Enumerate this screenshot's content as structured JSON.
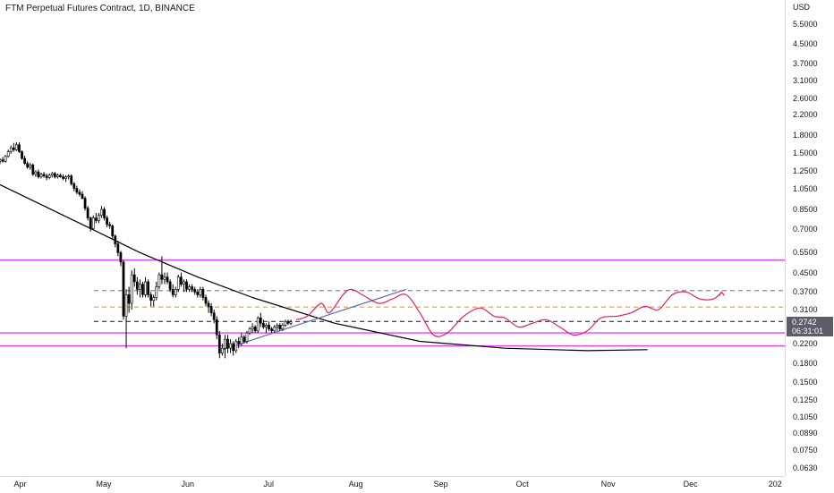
{
  "header": {
    "title": "FTM Perpetual Futures Contract, 1D, BINANCE"
  },
  "price_axis": {
    "unit": "USD",
    "ticks": [
      "5.5000",
      "4.5000",
      "3.7000",
      "3.1000",
      "2.6000",
      "2.2000",
      "1.8000",
      "1.5000",
      "1.2500",
      "1.0500",
      "0.8500",
      "0.7000",
      "0.5500",
      "0.4500",
      "0.3700",
      "0.3100",
      "0.2600",
      "0.2200",
      "0.1800",
      "0.1500",
      "0.1250",
      "0.1050",
      "0.0890",
      "0.0750",
      "0.0630"
    ],
    "last_price": "0.2742",
    "countdown": "06:31:01"
  },
  "time_axis": {
    "labels": [
      "Apr",
      "May",
      "Jun",
      "Jul",
      "Aug",
      "Sep",
      "Oct",
      "Nov",
      "Dec",
      "202"
    ]
  },
  "colors": {
    "up_candle": "#ffffff",
    "down_candle": "#000000",
    "candle_border": "#000000",
    "magenta_level": "#e040fb",
    "orange_level": "#ff9800",
    "gray_level": "#787b86",
    "navy_level": "#2a2e5e",
    "trend_black": "#000000",
    "trend_blue": "#5c6bc0",
    "projection": "#e91e63",
    "badge": "#5b5e68"
  },
  "chart_data": {
    "type": "candlestick",
    "title": "FTM Perpetual Futures Contract, 1D, BINANCE",
    "y_scale": "log",
    "y_unit": "USD",
    "ylim": [
      0.058,
      7.0
    ],
    "x_range": [
      "2022-03-25",
      "2023-01-05"
    ],
    "horizontal_levels": [
      {
        "price": 0.51,
        "style": "solid",
        "color": "magenta"
      },
      {
        "price": 0.375,
        "style": "dashed",
        "color": "gray"
      },
      {
        "price": 0.318,
        "style": "dashed",
        "color": "orange"
      },
      {
        "price": 0.275,
        "style": "dashed",
        "color": "navy"
      },
      {
        "price": 0.245,
        "style": "solid",
        "color": "magenta"
      },
      {
        "price": 0.215,
        "style": "solid",
        "color": "magenta"
      }
    ],
    "trendlines": [
      {
        "color": "black",
        "points": [
          [
            "2022-03-25",
            1.09
          ],
          [
            "2022-04-25",
            0.72
          ],
          [
            "2022-05-15",
            0.55
          ],
          [
            "2022-06-05",
            0.43
          ],
          [
            "2022-06-25",
            0.35
          ],
          [
            "2022-07-25",
            0.27
          ],
          [
            "2022-08-25",
            0.225
          ],
          [
            "2022-09-25",
            0.21
          ],
          [
            "2022-10-25",
            0.205
          ],
          [
            "2022-11-16",
            0.207
          ]
        ]
      },
      {
        "color": "blue",
        "points": [
          [
            "2022-06-13",
            0.205
          ],
          [
            "2022-08-20",
            0.38
          ]
        ]
      }
    ],
    "projection_path": [
      [
        "2022-07-11",
        0.28
      ],
      [
        "2022-07-15",
        0.29
      ],
      [
        "2022-07-20",
        0.33
      ],
      [
        "2022-07-23",
        0.3
      ],
      [
        "2022-07-28",
        0.36
      ],
      [
        "2022-07-31",
        0.38
      ],
      [
        "2022-08-04",
        0.36
      ],
      [
        "2022-08-10",
        0.33
      ],
      [
        "2022-08-15",
        0.345
      ],
      [
        "2022-08-20",
        0.36
      ],
      [
        "2022-08-25",
        0.3
      ],
      [
        "2022-08-30",
        0.24
      ],
      [
        "2022-09-04",
        0.245
      ],
      [
        "2022-09-10",
        0.29
      ],
      [
        "2022-09-16",
        0.315
      ],
      [
        "2022-09-21",
        0.29
      ],
      [
        "2022-09-25",
        0.285
      ],
      [
        "2022-09-30",
        0.26
      ],
      [
        "2022-10-05",
        0.27
      ],
      [
        "2022-10-10",
        0.28
      ],
      [
        "2022-10-15",
        0.26
      ],
      [
        "2022-10-20",
        0.24
      ],
      [
        "2022-10-25",
        0.25
      ],
      [
        "2022-10-30",
        0.285
      ],
      [
        "2022-11-05",
        0.29
      ],
      [
        "2022-11-10",
        0.3
      ],
      [
        "2022-11-15",
        0.32
      ],
      [
        "2022-11-20",
        0.31
      ],
      [
        "2022-11-25",
        0.36
      ],
      [
        "2022-11-30",
        0.37
      ],
      [
        "2022-12-05",
        0.345
      ],
      [
        "2022-12-10",
        0.345
      ],
      [
        "2022-12-13",
        0.37
      ]
    ],
    "candles": [
      [
        "2022-03-25",
        1.38,
        1.42,
        1.34,
        1.4
      ],
      [
        "2022-03-26",
        1.4,
        1.44,
        1.36,
        1.38
      ],
      [
        "2022-03-27",
        1.38,
        1.47,
        1.36,
        1.45
      ],
      [
        "2022-03-28",
        1.45,
        1.55,
        1.43,
        1.52
      ],
      [
        "2022-03-29",
        1.52,
        1.62,
        1.49,
        1.58
      ],
      [
        "2022-03-30",
        1.58,
        1.66,
        1.52,
        1.55
      ],
      [
        "2022-03-31",
        1.55,
        1.67,
        1.53,
        1.63
      ],
      [
        "2022-04-01",
        1.63,
        1.67,
        1.5,
        1.52
      ],
      [
        "2022-04-02",
        1.52,
        1.54,
        1.4,
        1.42
      ],
      [
        "2022-04-03",
        1.42,
        1.46,
        1.33,
        1.35
      ],
      [
        "2022-04-04",
        1.35,
        1.38,
        1.28,
        1.3
      ],
      [
        "2022-04-05",
        1.3,
        1.36,
        1.27,
        1.33
      ],
      [
        "2022-04-06",
        1.33,
        1.35,
        1.19,
        1.21
      ],
      [
        "2022-04-07",
        1.21,
        1.26,
        1.18,
        1.24
      ],
      [
        "2022-04-08",
        1.24,
        1.27,
        1.16,
        1.18
      ],
      [
        "2022-04-09",
        1.18,
        1.23,
        1.16,
        1.21
      ],
      [
        "2022-04-10",
        1.21,
        1.24,
        1.17,
        1.19
      ],
      [
        "2022-04-11",
        1.19,
        1.22,
        1.14,
        1.17
      ],
      [
        "2022-04-12",
        1.17,
        1.22,
        1.15,
        1.2
      ],
      [
        "2022-04-13",
        1.2,
        1.24,
        1.17,
        1.22
      ],
      [
        "2022-04-14",
        1.22,
        1.24,
        1.16,
        1.18
      ],
      [
        "2022-04-15",
        1.18,
        1.22,
        1.16,
        1.2
      ],
      [
        "2022-04-16",
        1.2,
        1.22,
        1.17,
        1.18
      ],
      [
        "2022-04-17",
        1.18,
        1.21,
        1.14,
        1.16
      ],
      [
        "2022-04-18",
        1.16,
        1.2,
        1.12,
        1.18
      ],
      [
        "2022-04-19",
        1.18,
        1.21,
        1.15,
        1.19
      ],
      [
        "2022-04-20",
        1.19,
        1.21,
        1.08,
        1.1
      ],
      [
        "2022-04-21",
        1.1,
        1.12,
        1.02,
        1.05
      ],
      [
        "2022-04-22",
        1.05,
        1.08,
        0.99,
        1.01
      ],
      [
        "2022-04-23",
        1.01,
        1.04,
        0.97,
        0.99
      ],
      [
        "2022-04-24",
        0.99,
        1.02,
        0.94,
        0.95
      ],
      [
        "2022-04-25",
        0.95,
        0.97,
        0.84,
        0.86
      ],
      [
        "2022-04-26",
        0.86,
        0.88,
        0.76,
        0.78
      ],
      [
        "2022-04-27",
        0.78,
        0.79,
        0.68,
        0.7
      ],
      [
        "2022-04-28",
        0.7,
        0.8,
        0.69,
        0.78
      ],
      [
        "2022-04-29",
        0.78,
        0.82,
        0.74,
        0.76
      ],
      [
        "2022-04-30",
        0.76,
        0.82,
        0.74,
        0.8
      ],
      [
        "2022-05-01",
        0.8,
        0.88,
        0.78,
        0.85
      ],
      [
        "2022-05-02",
        0.85,
        0.87,
        0.76,
        0.78
      ],
      [
        "2022-05-03",
        0.78,
        0.8,
        0.71,
        0.73
      ],
      [
        "2022-05-04",
        0.73,
        0.75,
        0.7,
        0.72
      ],
      [
        "2022-05-05",
        0.72,
        0.73,
        0.63,
        0.65
      ],
      [
        "2022-05-06",
        0.65,
        0.66,
        0.58,
        0.6
      ],
      [
        "2022-05-07",
        0.6,
        0.62,
        0.53,
        0.55
      ],
      [
        "2022-05-08",
        0.55,
        0.56,
        0.48,
        0.5
      ],
      [
        "2022-05-09",
        0.5,
        0.51,
        0.28,
        0.29
      ],
      [
        "2022-05-10",
        0.29,
        0.38,
        0.21,
        0.36
      ],
      [
        "2022-05-11",
        0.36,
        0.39,
        0.3,
        0.33
      ],
      [
        "2022-05-12",
        0.33,
        0.46,
        0.31,
        0.44
      ],
      [
        "2022-05-13",
        0.44,
        0.47,
        0.39,
        0.41
      ],
      [
        "2022-05-14",
        0.41,
        0.43,
        0.36,
        0.38
      ],
      [
        "2022-05-15",
        0.38,
        0.42,
        0.35,
        0.4
      ],
      [
        "2022-05-16",
        0.4,
        0.41,
        0.35,
        0.36
      ],
      [
        "2022-05-17",
        0.36,
        0.43,
        0.35,
        0.41
      ],
      [
        "2022-05-18",
        0.41,
        0.42,
        0.35,
        0.36
      ],
      [
        "2022-05-19",
        0.36,
        0.37,
        0.32,
        0.34
      ],
      [
        "2022-05-20",
        0.34,
        0.36,
        0.32,
        0.35
      ],
      [
        "2022-05-21",
        0.35,
        0.41,
        0.34,
        0.39
      ],
      [
        "2022-05-22",
        0.39,
        0.45,
        0.38,
        0.44
      ],
      [
        "2022-05-23",
        0.44,
        0.53,
        0.4,
        0.42
      ],
      [
        "2022-05-24",
        0.42,
        0.45,
        0.4,
        0.43
      ],
      [
        "2022-05-25",
        0.43,
        0.45,
        0.4,
        0.41
      ],
      [
        "2022-05-26",
        0.41,
        0.42,
        0.37,
        0.38
      ],
      [
        "2022-05-27",
        0.38,
        0.4,
        0.35,
        0.36
      ],
      [
        "2022-05-28",
        0.36,
        0.39,
        0.35,
        0.38
      ],
      [
        "2022-05-29",
        0.38,
        0.44,
        0.37,
        0.43
      ],
      [
        "2022-05-30",
        0.43,
        0.45,
        0.39,
        0.4
      ],
      [
        "2022-05-31",
        0.4,
        0.42,
        0.37,
        0.41
      ],
      [
        "2022-06-01",
        0.41,
        0.42,
        0.37,
        0.38
      ],
      [
        "2022-06-02",
        0.38,
        0.4,
        0.37,
        0.39
      ],
      [
        "2022-06-03",
        0.39,
        0.4,
        0.37,
        0.38
      ],
      [
        "2022-06-04",
        0.38,
        0.39,
        0.36,
        0.37
      ],
      [
        "2022-06-05",
        0.37,
        0.38,
        0.35,
        0.36
      ],
      [
        "2022-06-06",
        0.36,
        0.39,
        0.35,
        0.38
      ],
      [
        "2022-06-07",
        0.38,
        0.39,
        0.34,
        0.35
      ],
      [
        "2022-06-08",
        0.35,
        0.36,
        0.32,
        0.33
      ],
      [
        "2022-06-09",
        0.33,
        0.34,
        0.3,
        0.32
      ],
      [
        "2022-06-10",
        0.32,
        0.33,
        0.29,
        0.3
      ],
      [
        "2022-06-11",
        0.3,
        0.31,
        0.27,
        0.28
      ],
      [
        "2022-06-12",
        0.28,
        0.29,
        0.23,
        0.24
      ],
      [
        "2022-06-13",
        0.24,
        0.25,
        0.19,
        0.2
      ],
      [
        "2022-06-14",
        0.2,
        0.22,
        0.195,
        0.21
      ],
      [
        "2022-06-15",
        0.21,
        0.24,
        0.19,
        0.23
      ],
      [
        "2022-06-16",
        0.23,
        0.24,
        0.2,
        0.21
      ],
      [
        "2022-06-17",
        0.21,
        0.23,
        0.2,
        0.22
      ],
      [
        "2022-06-18",
        0.22,
        0.225,
        0.195,
        0.205
      ],
      [
        "2022-06-19",
        0.205,
        0.23,
        0.2,
        0.225
      ],
      [
        "2022-06-20",
        0.225,
        0.235,
        0.21,
        0.22
      ],
      [
        "2022-06-21",
        0.22,
        0.245,
        0.215,
        0.235
      ],
      [
        "2022-06-22",
        0.235,
        0.24,
        0.22,
        0.225
      ],
      [
        "2022-06-23",
        0.225,
        0.25,
        0.22,
        0.245
      ],
      [
        "2022-06-24",
        0.245,
        0.26,
        0.24,
        0.255
      ],
      [
        "2022-06-25",
        0.255,
        0.27,
        0.245,
        0.26
      ],
      [
        "2022-06-26",
        0.26,
        0.265,
        0.245,
        0.25
      ],
      [
        "2022-06-27",
        0.25,
        0.29,
        0.245,
        0.285
      ],
      [
        "2022-06-28",
        0.285,
        0.3,
        0.26,
        0.27
      ],
      [
        "2022-06-29",
        0.27,
        0.28,
        0.255,
        0.26
      ],
      [
        "2022-06-30",
        0.26,
        0.27,
        0.245,
        0.265
      ],
      [
        "2022-07-01",
        0.265,
        0.275,
        0.25,
        0.255
      ],
      [
        "2022-07-02",
        0.255,
        0.26,
        0.245,
        0.25
      ],
      [
        "2022-07-03",
        0.25,
        0.265,
        0.245,
        0.26
      ],
      [
        "2022-07-04",
        0.26,
        0.27,
        0.25,
        0.265
      ],
      [
        "2022-07-05",
        0.265,
        0.27,
        0.25,
        0.255
      ],
      [
        "2022-07-06",
        0.255,
        0.27,
        0.25,
        0.265
      ],
      [
        "2022-07-07",
        0.265,
        0.28,
        0.26,
        0.275
      ],
      [
        "2022-07-08",
        0.275,
        0.28,
        0.265,
        0.27
      ],
      [
        "2022-07-09",
        0.27,
        0.28,
        0.265,
        0.2742
      ]
    ]
  }
}
